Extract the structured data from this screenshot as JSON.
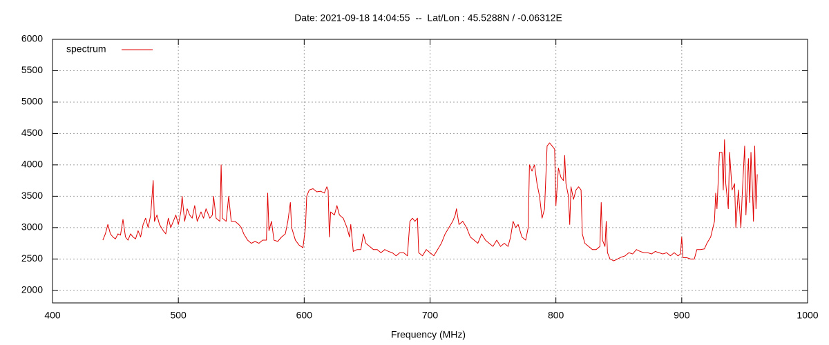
{
  "chart_data": {
    "type": "line",
    "title": "Date: 2021-09-18 14:04:55  --  Lat/Lon : 45.5288N / -0.06312E",
    "xlabel": "Frequency (MHz)",
    "xlim": [
      400,
      1000
    ],
    "xticks": [
      400,
      500,
      600,
      700,
      800,
      900,
      1000
    ],
    "ylim": [
      1800,
      6000
    ],
    "yticks": [
      2000,
      2500,
      3000,
      3500,
      4000,
      4500,
      5000,
      5500,
      6000
    ],
    "grid": true,
    "legend": "top-left",
    "x": [
      440,
      442,
      444,
      446,
      448,
      450,
      452,
      454,
      456,
      458,
      460,
      462,
      464,
      466,
      468,
      470,
      472,
      474,
      476,
      478,
      480,
      481,
      483,
      485,
      488,
      490,
      492,
      494,
      496,
      498,
      500,
      502,
      503,
      505,
      507,
      509,
      511,
      513,
      515,
      518,
      520,
      522,
      525,
      527,
      528,
      530,
      533,
      534,
      535,
      538,
      540,
      542,
      545,
      548,
      550,
      552,
      555,
      558,
      561,
      564,
      567,
      570,
      571,
      572,
      574,
      576,
      579,
      582,
      585,
      587,
      589,
      590,
      593,
      596,
      599,
      601,
      602,
      604,
      607,
      610,
      613,
      616,
      618,
      619,
      620,
      621,
      624,
      626,
      628,
      631,
      634,
      636,
      637,
      639,
      642,
      645,
      647,
      649,
      652,
      655,
      658,
      661,
      664,
      667,
      670,
      673,
      676,
      679,
      682,
      684,
      686,
      688,
      690,
      691,
      694,
      697,
      700,
      703,
      706,
      709,
      712,
      715,
      718,
      720,
      721,
      723,
      726,
      729,
      732,
      735,
      738,
      741,
      744,
      747,
      750,
      753,
      756,
      759,
      762,
      764,
      766,
      768,
      770,
      773,
      776,
      778,
      779,
      781,
      783,
      785,
      787,
      789,
      791,
      793,
      795,
      797,
      799,
      800,
      802,
      804,
      806,
      807,
      808,
      810,
      811,
      812,
      814,
      816,
      818,
      820,
      821,
      823,
      826,
      829,
      832,
      835,
      836,
      837,
      839,
      840,
      841,
      843,
      846,
      849,
      852,
      855,
      858,
      861,
      864,
      867,
      870,
      873,
      876,
      879,
      882,
      885,
      888,
      891,
      894,
      897,
      899,
      900,
      901,
      904,
      907,
      910,
      912,
      915,
      918,
      920,
      923,
      926,
      927,
      928,
      930,
      932,
      933,
      934,
      935,
      937,
      938,
      940,
      942,
      943,
      945,
      947,
      948,
      950,
      951,
      953,
      954,
      955,
      956,
      957,
      958,
      959,
      960
    ],
    "series": [
      {
        "name": "spectrum",
        "color": "#e00000",
        "values": [
          2800,
          2900,
          3050,
          2900,
          2850,
          2820,
          2900,
          2880,
          3130,
          2850,
          2800,
          2900,
          2850,
          2820,
          2950,
          2850,
          3050,
          3150,
          3000,
          3200,
          3750,
          3100,
          3200,
          3050,
          2950,
          2900,
          3150,
          3000,
          3100,
          3200,
          3050,
          3250,
          3500,
          3100,
          3300,
          3200,
          3150,
          3350,
          3100,
          3250,
          3150,
          3300,
          3150,
          3200,
          3500,
          3150,
          3100,
          4000,
          3150,
          3100,
          3500,
          3100,
          3100,
          3050,
          3000,
          2900,
          2800,
          2750,
          2780,
          2750,
          2800,
          2800,
          3550,
          2950,
          3100,
          2800,
          2780,
          2850,
          2900,
          3100,
          3400,
          3000,
          2800,
          2720,
          2680,
          3000,
          3500,
          3600,
          3620,
          3570,
          3580,
          3550,
          3650,
          3600,
          2850,
          3250,
          3200,
          3350,
          3200,
          3150,
          3000,
          2850,
          3050,
          2620,
          2650,
          2650,
          2900,
          2750,
          2700,
          2650,
          2650,
          2600,
          2650,
          2620,
          2600,
          2550,
          2600,
          2600,
          2550,
          3100,
          3150,
          3100,
          3150,
          2600,
          2550,
          2650,
          2600,
          2550,
          2650,
          2750,
          2900,
          3000,
          3100,
          3200,
          3300,
          3050,
          3100,
          3000,
          2850,
          2800,
          2750,
          2900,
          2800,
          2750,
          2700,
          2800,
          2700,
          2750,
          2700,
          2850,
          3100,
          3000,
          3050,
          2850,
          2800,
          3000,
          4000,
          3900,
          4000,
          3700,
          3500,
          3150,
          3300,
          4300,
          4350,
          4300,
          4250,
          3350,
          3950,
          3800,
          3750,
          4150,
          3700,
          3500,
          3050,
          3650,
          3450,
          3600,
          3650,
          3600,
          2900,
          2750,
          2700,
          2650,
          2650,
          2700,
          3400,
          2800,
          2700,
          3100,
          2600,
          2500,
          2470,
          2500,
          2530,
          2550,
          2600,
          2580,
          2650,
          2620,
          2600,
          2600,
          2580,
          2620,
          2600,
          2580,
          2600,
          2550,
          2600,
          2550,
          2580,
          2850,
          2520,
          2520,
          2500,
          2500,
          2650,
          2650,
          2660,
          2750,
          2850,
          3100,
          3550,
          3300,
          4200,
          4200,
          3600,
          4400,
          3700,
          3300,
          4200,
          3600,
          3700,
          3000,
          3600,
          3000,
          3500,
          4300,
          3200,
          4100,
          3400,
          4200,
          3700,
          3100,
          4300,
          3300,
          3850
        ]
      }
    ]
  }
}
